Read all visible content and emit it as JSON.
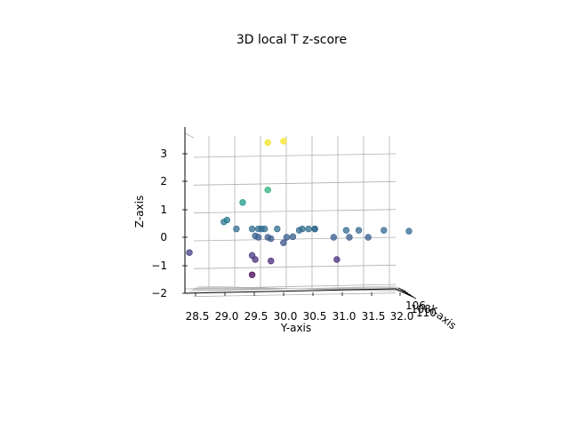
{
  "chart_data": {
    "type": "scatter",
    "title": "3D local T z-score",
    "xlabel": "X-axis",
    "ylabel": "Y-axis",
    "zlabel": "Z-axis",
    "grid": true,
    "colormap": "viridis",
    "y_ticks": [
      "28.5",
      "29.0",
      "29.5",
      "30.0",
      "30.5",
      "31.0",
      "31.5",
      "32.0"
    ],
    "z_ticks": [
      "−2",
      "−1",
      "0",
      "1",
      "2",
      "3"
    ],
    "x_ticks": [
      "106",
      "108",
      "110"
    ],
    "ylim": [
      28.3,
      32.1
    ],
    "zlim": [
      -2.1,
      3.7
    ],
    "points": [
      {
        "y": 28.5,
        "z": -0.55
      },
      {
        "y": 29.05,
        "z": 0.55
      },
      {
        "y": 29.1,
        "z": 0.62
      },
      {
        "y": 29.25,
        "z": 0.3
      },
      {
        "y": 29.35,
        "z": 1.25
      },
      {
        "y": 29.5,
        "z": 0.3
      },
      {
        "y": 29.6,
        "z": 0.3
      },
      {
        "y": 29.65,
        "z": 0.3
      },
      {
        "y": 29.7,
        "z": 0.3
      },
      {
        "y": 29.55,
        "z": 0.05
      },
      {
        "y": 29.6,
        "z": 0.0
      },
      {
        "y": 29.75,
        "z": 0.0
      },
      {
        "y": 29.8,
        "z": -0.05
      },
      {
        "y": 29.5,
        "z": -0.65
      },
      {
        "y": 29.55,
        "z": -0.8
      },
      {
        "y": 29.8,
        "z": -0.85
      },
      {
        "y": 29.5,
        "z": -1.35
      },
      {
        "y": 29.75,
        "z": 1.7
      },
      {
        "y": 29.75,
        "z": 3.4
      },
      {
        "y": 30.0,
        "z": 3.45
      },
      {
        "y": 29.9,
        "z": 0.3
      },
      {
        "y": 30.05,
        "z": 0.0
      },
      {
        "y": 30.0,
        "z": -0.2
      },
      {
        "y": 30.15,
        "z": 0.02
      },
      {
        "y": 30.25,
        "z": 0.25
      },
      {
        "y": 30.3,
        "z": 0.3
      },
      {
        "y": 30.4,
        "z": 0.3
      },
      {
        "y": 30.5,
        "z": 0.3
      },
      {
        "y": 30.5,
        "z": 0.3
      },
      {
        "y": 30.8,
        "z": 0.0
      },
      {
        "y": 30.85,
        "z": -0.8
      },
      {
        "y": 31.0,
        "z": 0.25
      },
      {
        "y": 31.05,
        "z": 0.0
      },
      {
        "y": 31.2,
        "z": 0.25
      },
      {
        "y": 31.35,
        "z": 0.0
      },
      {
        "y": 31.6,
        "z": 0.25
      },
      {
        "y": 32.0,
        "z": 0.22
      }
    ]
  }
}
